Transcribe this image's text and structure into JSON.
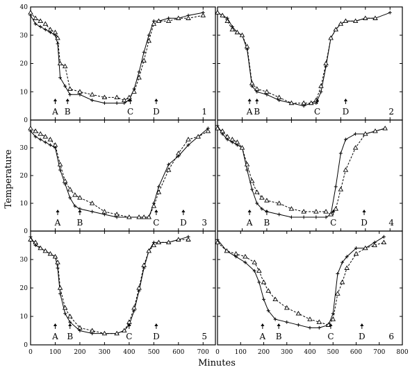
{
  "chart_data": {
    "type": "line",
    "xlabel": "Minutes",
    "ylabel": "Temperature",
    "grid": false,
    "panels": [
      {
        "panel": "1",
        "xlim": [
          0,
          750
        ],
        "ylim": [
          0,
          40
        ],
        "yticks": [
          0,
          10,
          20,
          30,
          40
        ],
        "events": [
          {
            "label": "A",
            "x": 100
          },
          {
            "label": "B",
            "x": 150
          },
          {
            "label": "C",
            "x": 405
          },
          {
            "label": "D",
            "x": 510
          }
        ],
        "series": [
          {
            "marker": "plus",
            "x": [
              0,
              20,
              40,
              60,
              80,
              100,
              110,
              120,
              140,
              160,
              200,
              250,
              300,
              350,
              380,
              400,
              420,
              440,
              460,
              480,
              500,
              520,
              560,
              600,
              640,
              700
            ],
            "y": [
              37,
              34,
              33,
              32,
              31,
              30,
              27,
              15,
              12,
              9,
              9,
              7,
              6,
              6,
              6,
              7,
              11,
              17,
              24,
              30,
              35,
              35,
              36,
              36,
              37,
              38
            ]
          },
          {
            "marker": "triangle",
            "x": [
              0,
              20,
              40,
              60,
              80,
              100,
              110,
              120,
              140,
              160,
              200,
              250,
              300,
              350,
              380,
              400,
              420,
              440,
              460,
              480,
              500,
              520,
              560,
              600,
              640,
              700
            ],
            "y": [
              38,
              36,
              35,
              34,
              32,
              31,
              29,
              20,
              19,
              11,
              10,
              9,
              8,
              8,
              7,
              8,
              10,
              15,
              21,
              28,
              34,
              35,
              35,
              36,
              36,
              37
            ]
          }
        ]
      },
      {
        "panel": "2",
        "xlim": [
          0,
          750
        ],
        "ylim": [
          0,
          40
        ],
        "yticks": [
          0,
          10,
          20,
          30,
          40
        ],
        "events": [
          {
            "label": "A",
            "x": 130
          },
          {
            "label": "B",
            "x": 160
          },
          {
            "label": "C",
            "x": 405
          },
          {
            "label": "D",
            "x": 520
          }
        ],
        "series": [
          {
            "marker": "plus",
            "x": [
              0,
              20,
              40,
              60,
              80,
              100,
              120,
              140,
              160,
              200,
              250,
              300,
              350,
              380,
              400,
              420,
              440,
              460,
              480,
              500,
              520,
              560,
              600,
              640,
              700
            ],
            "y": [
              38,
              37,
              36,
              33,
              31,
              30,
              25,
              12,
              10,
              9,
              7,
              6,
              5,
              6,
              6,
              10,
              19,
              29,
              32,
              34,
              35,
              35,
              36,
              36,
              38
            ]
          },
          {
            "marker": "triangle",
            "x": [
              0,
              20,
              40,
              60,
              80,
              100,
              120,
              140,
              160,
              200,
              250,
              300,
              350,
              380,
              400,
              420,
              440,
              460,
              480,
              500,
              520,
              560,
              600,
              640
            ],
            "y": [
              38,
              37,
              35,
              32,
              31,
              30,
              26,
              13,
              11,
              10,
              8,
              6,
              6,
              6,
              7,
              12,
              20,
              29,
              32,
              34,
              35,
              35,
              36,
              36
            ]
          }
        ]
      },
      {
        "panel": "3",
        "xlim": [
          0,
          750
        ],
        "ylim": [
          0,
          40
        ],
        "yticks": [
          0,
          10,
          20,
          30
        ],
        "events": [
          {
            "label": "A",
            "x": 110
          },
          {
            "label": "B",
            "x": 200
          },
          {
            "label": "C",
            "x": 510
          },
          {
            "label": "D",
            "x": 620
          }
        ],
        "series": [
          {
            "marker": "plus",
            "x": [
              0,
              20,
              40,
              60,
              80,
              100,
              120,
              140,
              160,
              180,
              200,
              250,
              300,
              350,
              400,
              440,
              460,
              480,
              500,
              520,
              560,
              600,
              640,
              680,
              720
            ],
            "y": [
              36,
              34,
              33,
              32,
              31,
              30,
              22,
              17,
              12,
              9,
              8,
              7,
              6,
              5,
              5,
              5,
              5,
              5,
              10,
              16,
              24,
              27,
              31,
              34,
              37
            ]
          },
          {
            "marker": "triangle",
            "x": [
              0,
              20,
              40,
              60,
              80,
              100,
              120,
              140,
              160,
              180,
              200,
              250,
              300,
              350,
              400,
              440,
              460,
              480,
              500,
              520,
              560,
              600,
              640,
              680,
              720
            ],
            "y": [
              37,
              36,
              35,
              34,
              33,
              31,
              24,
              18,
              15,
              13,
              12,
              10,
              7,
              6,
              5,
              5,
              5,
              5,
              9,
              14,
              22,
              28,
              33,
              34,
              36
            ]
          }
        ]
      },
      {
        "panel": "4",
        "xlim": [
          0,
          750
        ],
        "ylim": [
          0,
          40
        ],
        "yticks": [
          0,
          10,
          20,
          30
        ],
        "events": [
          {
            "label": "A",
            "x": 130
          },
          {
            "label": "B",
            "x": 200
          },
          {
            "label": "C",
            "x": 470
          },
          {
            "label": "D",
            "x": 595
          }
        ],
        "series": [
          {
            "marker": "plus",
            "x": [
              0,
              20,
              40,
              60,
              80,
              100,
              120,
              140,
              160,
              180,
              200,
              250,
              300,
              350,
              400,
              440,
              460,
              480,
              500,
              520,
              560,
              600,
              640,
              680
            ],
            "y": [
              38,
              35,
              33,
              32,
              31,
              30,
              22,
              15,
              10,
              8,
              7,
              6,
              5,
              5,
              5,
              5,
              6,
              16,
              28,
              33,
              35,
              35,
              36,
              37
            ]
          },
          {
            "marker": "triangle",
            "x": [
              0,
              20,
              40,
              60,
              80,
              100,
              120,
              140,
              160,
              180,
              200,
              250,
              300,
              350,
              400,
              440,
              460,
              480,
              500,
              520,
              560,
              600,
              640,
              680
            ],
            "y": [
              37,
              36,
              34,
              33,
              32,
              30,
              24,
              18,
              14,
              12,
              11,
              10,
              8,
              7,
              7,
              7,
              6,
              8,
              15,
              22,
              30,
              35,
              36,
              37
            ]
          }
        ]
      },
      {
        "panel": "5",
        "xlim": [
          0,
          750
        ],
        "ylim": [
          0,
          40
        ],
        "yticks": [
          0,
          10,
          20,
          30
        ],
        "events": [
          {
            "label": "A",
            "x": 100
          },
          {
            "label": "B",
            "x": 160
          },
          {
            "label": "C",
            "x": 400
          },
          {
            "label": "D",
            "x": 510
          }
        ],
        "series": [
          {
            "marker": "plus",
            "x": [
              0,
              20,
              40,
              60,
              80,
              100,
              110,
              120,
              140,
              160,
              200,
              250,
              300,
              350,
              380,
              400,
              420,
              440,
              460,
              480,
              500,
              520,
              560,
              600,
              640
            ],
            "y": [
              38,
              35,
              34,
              33,
              32,
              31,
              27,
              18,
              11,
              8,
              5,
              4,
              4,
              4,
              5,
              7,
              12,
              19,
              27,
              33,
              36,
              36,
              36,
              37,
              38
            ]
          },
          {
            "marker": "triangle",
            "x": [
              0,
              20,
              40,
              60,
              80,
              100,
              110,
              120,
              140,
              160,
              200,
              250,
              300,
              350,
              380,
              400,
              420,
              440,
              460,
              480,
              500,
              520,
              560,
              600,
              640
            ],
            "y": [
              37,
              36,
              34,
              33,
              32,
              31,
              29,
              20,
              13,
              10,
              6,
              5,
              4,
              4,
              5,
              8,
              13,
              20,
              28,
              33,
              35,
              36,
              36,
              37,
              37
            ]
          }
        ]
      },
      {
        "panel": "6",
        "xlim": [
          0,
          800
        ],
        "ylim": [
          0,
          40
        ],
        "yticks": [
          0,
          10,
          20,
          30
        ],
        "xticks": [
          0,
          100,
          200,
          300,
          400,
          500,
          600,
          700,
          800
        ],
        "events": [
          {
            "label": "A",
            "x": 195
          },
          {
            "label": "B",
            "x": 265
          },
          {
            "label": "C",
            "x": 490
          },
          {
            "label": "D",
            "x": 625
          }
        ],
        "series": [
          {
            "marker": "plus",
            "x": [
              0,
              40,
              80,
              120,
              160,
              180,
              200,
              220,
              250,
              300,
              350,
              400,
              440,
              480,
              500,
              520,
              540,
              560,
              600,
              640,
              680,
              720
            ],
            "y": [
              37,
              33,
              31,
              29,
              26,
              22,
              16,
              12,
              9,
              8,
              7,
              6,
              6,
              7,
              11,
              25,
              29,
              31,
              34,
              34,
              36,
              38
            ]
          },
          {
            "marker": "triangle",
            "x": [
              0,
              40,
              80,
              120,
              160,
              180,
              200,
              220,
              250,
              300,
              350,
              400,
              440,
              480,
              500,
              520,
              540,
              560,
              600,
              640,
              680,
              720
            ],
            "y": [
              36,
              33,
              32,
              31,
              29,
              26,
              22,
              19,
              16,
              13,
              11,
              9,
              8,
              7,
              9,
              18,
              22,
              27,
              32,
              34,
              35,
              36
            ]
          }
        ]
      }
    ],
    "xticks": [
      0,
      100,
      200,
      300,
      400,
      500,
      600,
      700
    ]
  }
}
